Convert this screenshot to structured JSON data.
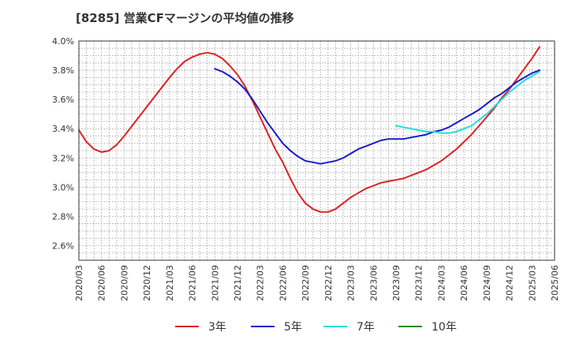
{
  "chart_data": {
    "type": "line",
    "title": "[8285]  営業CFマージンの平均値の推移",
    "xlabel": "",
    "ylabel": "",
    "ylim": [
      2.5,
      4.0
    ],
    "y_ticks": [
      "2.6%",
      "2.8%",
      "3.0%",
      "3.2%",
      "3.4%",
      "3.6%",
      "3.8%",
      "4.0%"
    ],
    "y_tick_values": [
      2.6,
      2.8,
      3.0,
      3.2,
      3.4,
      3.6,
      3.8,
      4.0
    ],
    "x_range": [
      "2020/03",
      "2025/06"
    ],
    "x_ticks": [
      "2020/03",
      "2020/06",
      "2020/09",
      "2020/12",
      "2021/03",
      "2021/06",
      "2021/09",
      "2021/12",
      "2022/03",
      "2022/06",
      "2022/09",
      "2022/12",
      "2023/03",
      "2023/06",
      "2023/09",
      "2023/12",
      "2024/03",
      "2024/06",
      "2024/09",
      "2024/12",
      "2025/03",
      "2025/06"
    ],
    "grid": true,
    "legend_position": "bottom",
    "series": [
      {
        "name": "3年",
        "color": "#dd2222",
        "points": [
          [
            "2020/03",
            3.39
          ],
          [
            "2020/04",
            3.31
          ],
          [
            "2020/05",
            3.26
          ],
          [
            "2020/06",
            3.24
          ],
          [
            "2020/07",
            3.25
          ],
          [
            "2020/08",
            3.29
          ],
          [
            "2020/09",
            3.35
          ],
          [
            "2020/12",
            3.55
          ],
          [
            "2021/03",
            3.75
          ],
          [
            "2021/04",
            3.81
          ],
          [
            "2021/05",
            3.86
          ],
          [
            "2021/06",
            3.89
          ],
          [
            "2021/07",
            3.91
          ],
          [
            "2021/08",
            3.92
          ],
          [
            "2021/09",
            3.91
          ],
          [
            "2021/10",
            3.88
          ],
          [
            "2021/11",
            3.83
          ],
          [
            "2021/12",
            3.77
          ],
          [
            "2022/01",
            3.69
          ],
          [
            "2022/02",
            3.59
          ],
          [
            "2022/03",
            3.48
          ],
          [
            "2022/04",
            3.37
          ],
          [
            "2022/05",
            3.26
          ],
          [
            "2022/06",
            3.17
          ],
          [
            "2022/07",
            3.06
          ],
          [
            "2022/08",
            2.96
          ],
          [
            "2022/09",
            2.89
          ],
          [
            "2022/10",
            2.85
          ],
          [
            "2022/11",
            2.83
          ],
          [
            "2022/12",
            2.83
          ],
          [
            "2023/01",
            2.85
          ],
          [
            "2023/02",
            2.89
          ],
          [
            "2023/03",
            2.93
          ],
          [
            "2023/04",
            2.96
          ],
          [
            "2023/05",
            2.99
          ],
          [
            "2023/06",
            3.01
          ],
          [
            "2023/07",
            3.03
          ],
          [
            "2023/08",
            3.04
          ],
          [
            "2023/09",
            3.05
          ],
          [
            "2023/10",
            3.06
          ],
          [
            "2023/11",
            3.08
          ],
          [
            "2023/12",
            3.1
          ],
          [
            "2024/01",
            3.12
          ],
          [
            "2024/02",
            3.15
          ],
          [
            "2024/03",
            3.18
          ],
          [
            "2024/04",
            3.22
          ],
          [
            "2024/05",
            3.26
          ],
          [
            "2024/06",
            3.31
          ],
          [
            "2024/07",
            3.36
          ],
          [
            "2024/08",
            3.42
          ],
          [
            "2024/09",
            3.48
          ],
          [
            "2024/10",
            3.54
          ],
          [
            "2024/11",
            3.61
          ],
          [
            "2024/12",
            3.67
          ],
          [
            "2025/01",
            3.74
          ],
          [
            "2025/02",
            3.81
          ],
          [
            "2025/03",
            3.88
          ],
          [
            "2025/04",
            3.96
          ]
        ]
      },
      {
        "name": "5年",
        "color": "#1a1acc",
        "points": [
          [
            "2021/09",
            3.81
          ],
          [
            "2021/10",
            3.79
          ],
          [
            "2021/11",
            3.76
          ],
          [
            "2021/12",
            3.72
          ],
          [
            "2022/01",
            3.67
          ],
          [
            "2022/02",
            3.6
          ],
          [
            "2022/03",
            3.52
          ],
          [
            "2022/04",
            3.44
          ],
          [
            "2022/05",
            3.37
          ],
          [
            "2022/06",
            3.3
          ],
          [
            "2022/07",
            3.25
          ],
          [
            "2022/08",
            3.21
          ],
          [
            "2022/09",
            3.18
          ],
          [
            "2022/10",
            3.17
          ],
          [
            "2022/11",
            3.16
          ],
          [
            "2022/12",
            3.17
          ],
          [
            "2023/01",
            3.18
          ],
          [
            "2023/02",
            3.2
          ],
          [
            "2023/03",
            3.23
          ],
          [
            "2023/04",
            3.26
          ],
          [
            "2023/05",
            3.28
          ],
          [
            "2023/06",
            3.3
          ],
          [
            "2023/07",
            3.32
          ],
          [
            "2023/08",
            3.33
          ],
          [
            "2023/09",
            3.33
          ],
          [
            "2023/10",
            3.33
          ],
          [
            "2023/11",
            3.34
          ],
          [
            "2023/12",
            3.35
          ],
          [
            "2024/01",
            3.36
          ],
          [
            "2024/02",
            3.38
          ],
          [
            "2024/03",
            3.39
          ],
          [
            "2024/04",
            3.41
          ],
          [
            "2024/05",
            3.44
          ],
          [
            "2024/06",
            3.47
          ],
          [
            "2024/07",
            3.5
          ],
          [
            "2024/08",
            3.53
          ],
          [
            "2024/09",
            3.57
          ],
          [
            "2024/10",
            3.61
          ],
          [
            "2024/11",
            3.64
          ],
          [
            "2024/12",
            3.68
          ],
          [
            "2025/01",
            3.72
          ],
          [
            "2025/02",
            3.75
          ],
          [
            "2025/03",
            3.78
          ],
          [
            "2025/04",
            3.8
          ]
        ]
      },
      {
        "name": "7年",
        "color": "#22dddd",
        "points": [
          [
            "2023/09",
            3.42
          ],
          [
            "2023/10",
            3.41
          ],
          [
            "2023/11",
            3.4
          ],
          [
            "2023/12",
            3.39
          ],
          [
            "2024/01",
            3.38
          ],
          [
            "2024/02",
            3.38
          ],
          [
            "2024/03",
            3.37
          ],
          [
            "2024/04",
            3.37
          ],
          [
            "2024/05",
            3.38
          ],
          [
            "2024/06",
            3.4
          ],
          [
            "2024/07",
            3.42
          ],
          [
            "2024/08",
            3.46
          ],
          [
            "2024/09",
            3.5
          ],
          [
            "2024/10",
            3.55
          ],
          [
            "2024/11",
            3.6
          ],
          [
            "2024/12",
            3.65
          ],
          [
            "2025/01",
            3.69
          ],
          [
            "2025/02",
            3.73
          ],
          [
            "2025/03",
            3.76
          ],
          [
            "2025/04",
            3.79
          ]
        ]
      },
      {
        "name": "10年",
        "color": "#228b22",
        "points": []
      }
    ]
  }
}
